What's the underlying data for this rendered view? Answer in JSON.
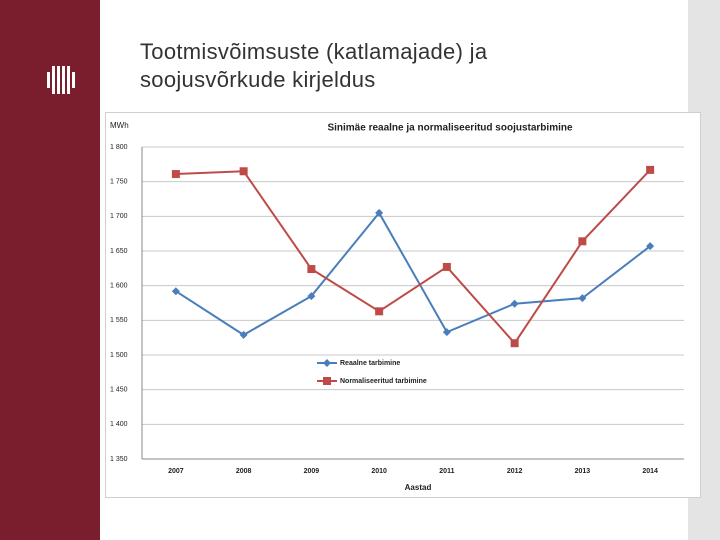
{
  "slide": {
    "title": "Tootmisvõimsuste (katlamajade) ja soojusvõrkude kirjeldus"
  },
  "chart_data": {
    "type": "line",
    "title": "Sinimäe reaalne ja normaliseeritud soojustarbimine",
    "y_label": "MWh",
    "x_label": "Aastad",
    "categories": [
      "2007",
      "2008",
      "2009",
      "2010",
      "2011",
      "2012",
      "2013",
      "2014"
    ],
    "series": [
      {
        "name": "Reaalne tarbimine",
        "color": "#4a7ebb",
        "marker": "diamond",
        "values": [
          1592,
          1529,
          1585,
          1705,
          1533,
          1574,
          1582,
          1657
        ]
      },
      {
        "name": "Normaliseeritud tarbimine",
        "color": "#be4b48",
        "marker": "square",
        "values": [
          1761,
          1765,
          1624,
          1563,
          1627,
          1517,
          1664,
          1767
        ]
      }
    ],
    "ylim": [
      1350,
      1800
    ],
    "yticks": [
      {
        "value": 1350,
        "label": "1 350"
      },
      {
        "value": 1400,
        "label": "1 400"
      },
      {
        "value": 1450,
        "label": "1 450"
      },
      {
        "value": 1500,
        "label": "1 500"
      },
      {
        "value": 1550,
        "label": "1 550"
      },
      {
        "value": 1600,
        "label": "1 600"
      },
      {
        "value": 1650,
        "label": "1 650"
      },
      {
        "value": 1700,
        "label": "1 700"
      },
      {
        "value": 1750,
        "label": "1 750"
      },
      {
        "value": 1800,
        "label": "1 800"
      }
    ],
    "grid": true
  }
}
